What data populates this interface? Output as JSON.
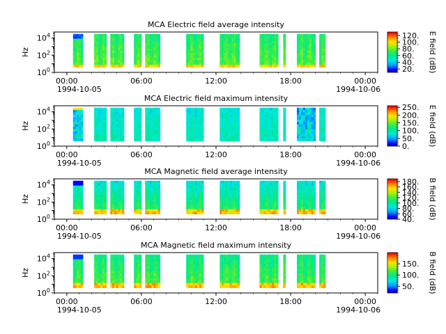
{
  "chart_data": [
    {
      "type": "heatmap",
      "title": "MCA  Electric field average intensity",
      "ylabel": "Hz",
      "y_scale": "log",
      "ylim": [
        1,
        50000
      ],
      "y_ticks": [
        {
          "base": "10",
          "exp": "0"
        },
        {
          "base": "10",
          "exp": "2"
        },
        {
          "base": "10",
          "exp": "4"
        }
      ],
      "x_ticks": [
        "00:00",
        "06:00",
        "12:00",
        "18:00",
        "00:00"
      ],
      "x_dates": [
        "1994-10-05",
        "1994-10-06"
      ],
      "xlim_hours": [
        -1,
        25
      ],
      "colorbar": {
        "label": "E field (dB)",
        "range": [
          10,
          130
        ],
        "ticks": [
          "20.",
          "40.",
          "60.",
          "80.",
          "100.",
          "120."
        ],
        "tick_values": [
          20,
          40,
          60,
          80,
          100,
          120
        ]
      },
      "data_blocks_hours": [
        [
          0.5,
          1.3
        ],
        [
          2.2,
          3.2
        ],
        [
          3.5,
          4.6
        ],
        [
          5.4,
          6.0
        ],
        [
          6.3,
          7.5
        ],
        [
          9.6,
          11.0
        ],
        [
          12.3,
          13.9
        ],
        [
          15.5,
          17.0
        ],
        [
          17.4,
          17.6
        ],
        [
          18.5,
          20.0
        ],
        [
          20.3,
          20.8
        ]
      ],
      "palette": "avg"
    },
    {
      "type": "heatmap",
      "title": "MCA  Electric field maximum intensity",
      "ylabel": "Hz",
      "y_scale": "log",
      "ylim": [
        1,
        50000
      ],
      "y_ticks": [
        {
          "base": "10",
          "exp": "0"
        },
        {
          "base": "10",
          "exp": "2"
        },
        {
          "base": "10",
          "exp": "4"
        }
      ],
      "x_ticks": [
        "00:00",
        "06:00",
        "12:00",
        "18:00",
        "00:00"
      ],
      "x_dates": [
        "1994-10-05",
        "1994-10-06"
      ],
      "xlim_hours": [
        -1,
        25
      ],
      "colorbar": {
        "label": "E field (dB)",
        "range": [
          0,
          260
        ],
        "ticks": [
          "0.",
          "50.",
          "100.",
          "150.",
          "200.",
          "250."
        ],
        "tick_values": [
          0,
          50,
          100,
          150,
          200,
          250
        ]
      },
      "data_blocks_hours": [
        [
          0.5,
          1.3
        ],
        [
          2.2,
          3.2
        ],
        [
          3.5,
          4.6
        ],
        [
          5.4,
          6.0
        ],
        [
          6.3,
          7.5
        ],
        [
          9.6,
          11.0
        ],
        [
          12.3,
          13.9
        ],
        [
          15.5,
          17.0
        ],
        [
          17.4,
          17.6
        ],
        [
          18.5,
          20.0
        ],
        [
          20.3,
          20.8
        ]
      ],
      "palette": "max_e"
    },
    {
      "type": "heatmap",
      "title": "MCA  Magnetic field average intensity",
      "ylabel": "Hz",
      "y_scale": "log",
      "ylim": [
        1,
        50000
      ],
      "y_ticks": [
        {
          "base": "10",
          "exp": "0"
        },
        {
          "base": "10",
          "exp": "2"
        },
        {
          "base": "10",
          "exp": "4"
        }
      ],
      "x_ticks": [
        "00:00",
        "06:00",
        "12:00",
        "18:00",
        "00:00"
      ],
      "x_dates": [
        "1994-10-05",
        "1994-10-06"
      ],
      "xlim_hours": [
        -1,
        25
      ],
      "colorbar": {
        "label": "B field (dB)",
        "range": [
          40,
          190
        ],
        "ticks": [
          "40.",
          "60.",
          "80.",
          "100.",
          "120.",
          "140.",
          "160.",
          "180."
        ],
        "tick_values": [
          40,
          60,
          80,
          100,
          120,
          140,
          160,
          180
        ]
      },
      "data_blocks_hours": [
        [
          0.5,
          1.3
        ],
        [
          2.2,
          3.2
        ],
        [
          3.5,
          4.6
        ],
        [
          5.4,
          6.0
        ],
        [
          6.3,
          7.5
        ],
        [
          9.6,
          11.0
        ],
        [
          12.3,
          13.9
        ],
        [
          15.5,
          17.0
        ],
        [
          17.4,
          17.6
        ],
        [
          18.5,
          20.0
        ],
        [
          20.3,
          20.8
        ]
      ],
      "palette": "avg_b"
    },
    {
      "type": "heatmap",
      "title": "MCA  Magnetic field maximum intensity",
      "ylabel": "Hz",
      "y_scale": "log",
      "ylim": [
        1,
        50000
      ],
      "y_ticks": [
        {
          "base": "10",
          "exp": "0"
        },
        {
          "base": "10",
          "exp": "2"
        },
        {
          "base": "10",
          "exp": "4"
        }
      ],
      "x_ticks": [
        "00:00",
        "06:00",
        "12:00",
        "18:00",
        "00:00"
      ],
      "x_dates": [
        "1994-10-05",
        "1994-10-06"
      ],
      "xlim_hours": [
        -1,
        25
      ],
      "colorbar": {
        "label": "B field (dB)",
        "range": [
          20,
          200
        ],
        "ticks": [
          "50.",
          "100.",
          "150."
        ],
        "tick_values": [
          50,
          100,
          150
        ]
      },
      "data_blocks_hours": [
        [
          0.5,
          1.3
        ],
        [
          2.2,
          3.2
        ],
        [
          3.5,
          4.6
        ],
        [
          5.4,
          6.0
        ],
        [
          6.3,
          7.5
        ],
        [
          9.6,
          11.0
        ],
        [
          12.3,
          13.9
        ],
        [
          15.5,
          17.0
        ],
        [
          17.4,
          17.6
        ],
        [
          18.5,
          20.0
        ],
        [
          20.3,
          20.8
        ]
      ],
      "palette": "max_b"
    }
  ]
}
